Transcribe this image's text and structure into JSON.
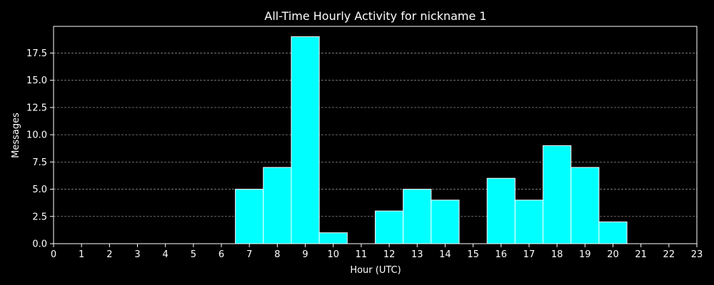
{
  "chart_data": {
    "type": "bar",
    "title": "All-Time Hourly Activity for nickname 1",
    "xlabel": "Hour (UTC)",
    "ylabel": "Messages",
    "categories": [
      "0",
      "1",
      "2",
      "3",
      "4",
      "5",
      "6",
      "7",
      "8",
      "9",
      "10",
      "11",
      "12",
      "13",
      "14",
      "15",
      "16",
      "17",
      "18",
      "19",
      "20",
      "21",
      "22",
      "23"
    ],
    "values": [
      0,
      0,
      0,
      0,
      0,
      0,
      0,
      5,
      7,
      19,
      1,
      0,
      3,
      5,
      4,
      0,
      6,
      4,
      9,
      7,
      2,
      0,
      0,
      0
    ],
    "x_ticks": [
      "0",
      "1",
      "2",
      "3",
      "4",
      "5",
      "6",
      "7",
      "8",
      "9",
      "10",
      "11",
      "12",
      "13",
      "14",
      "15",
      "16",
      "17",
      "18",
      "19",
      "20",
      "21",
      "22",
      "23"
    ],
    "y_ticks": [
      "0.0",
      "2.5",
      "5.0",
      "7.5",
      "10.0",
      "12.5",
      "15.0",
      "17.5"
    ],
    "y_tick_values": [
      0,
      2.5,
      5,
      7.5,
      10,
      12.5,
      15,
      17.5
    ],
    "xlim": [
      0,
      23
    ],
    "ylim": [
      0,
      19.95
    ],
    "grid": "horizontal dashed",
    "colors": {
      "background": "#000000",
      "bar_fill": "#00ffff",
      "bar_edge": "#ffffff",
      "axes": "#ffffff",
      "text": "#ffffff",
      "grid": "#888888"
    }
  }
}
